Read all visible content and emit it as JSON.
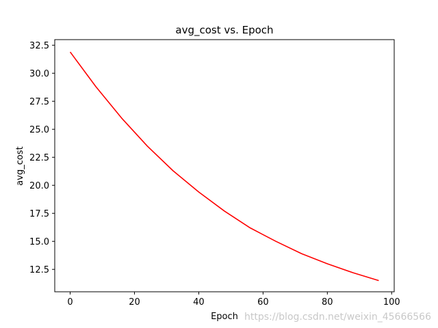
{
  "chart_data": {
    "type": "line",
    "title": "avg_cost vs. Epoch",
    "xlabel": "Epoch",
    "ylabel": "avg_cost",
    "xlim": [
      -4.8,
      100.8
    ],
    "ylim": [
      10.5,
      33.0
    ],
    "xticks": [
      0,
      20,
      40,
      60,
      80,
      100
    ],
    "xtick_labels": [
      "0",
      "20",
      "40",
      "60",
      "80",
      "100"
    ],
    "yticks": [
      12.5,
      15.0,
      17.5,
      20.0,
      22.5,
      25.0,
      27.5,
      30.0,
      32.5
    ],
    "ytick_labels": [
      "12.5",
      "15.0",
      "17.5",
      "20.0",
      "22.5",
      "25.0",
      "27.5",
      "30.0",
      "32.5"
    ],
    "grid": false,
    "series": [
      {
        "color": "#ff0000",
        "x": [
          0,
          8,
          16,
          24,
          32,
          40,
          48,
          56,
          64,
          72,
          80,
          88,
          96
        ],
        "y": [
          31.9,
          28.8,
          26.0,
          23.5,
          21.3,
          19.4,
          17.7,
          16.2,
          15.0,
          13.9,
          13.0,
          12.2,
          11.5
        ]
      }
    ]
  },
  "watermark": "https://blog.csdn.net/weixin_45666566"
}
